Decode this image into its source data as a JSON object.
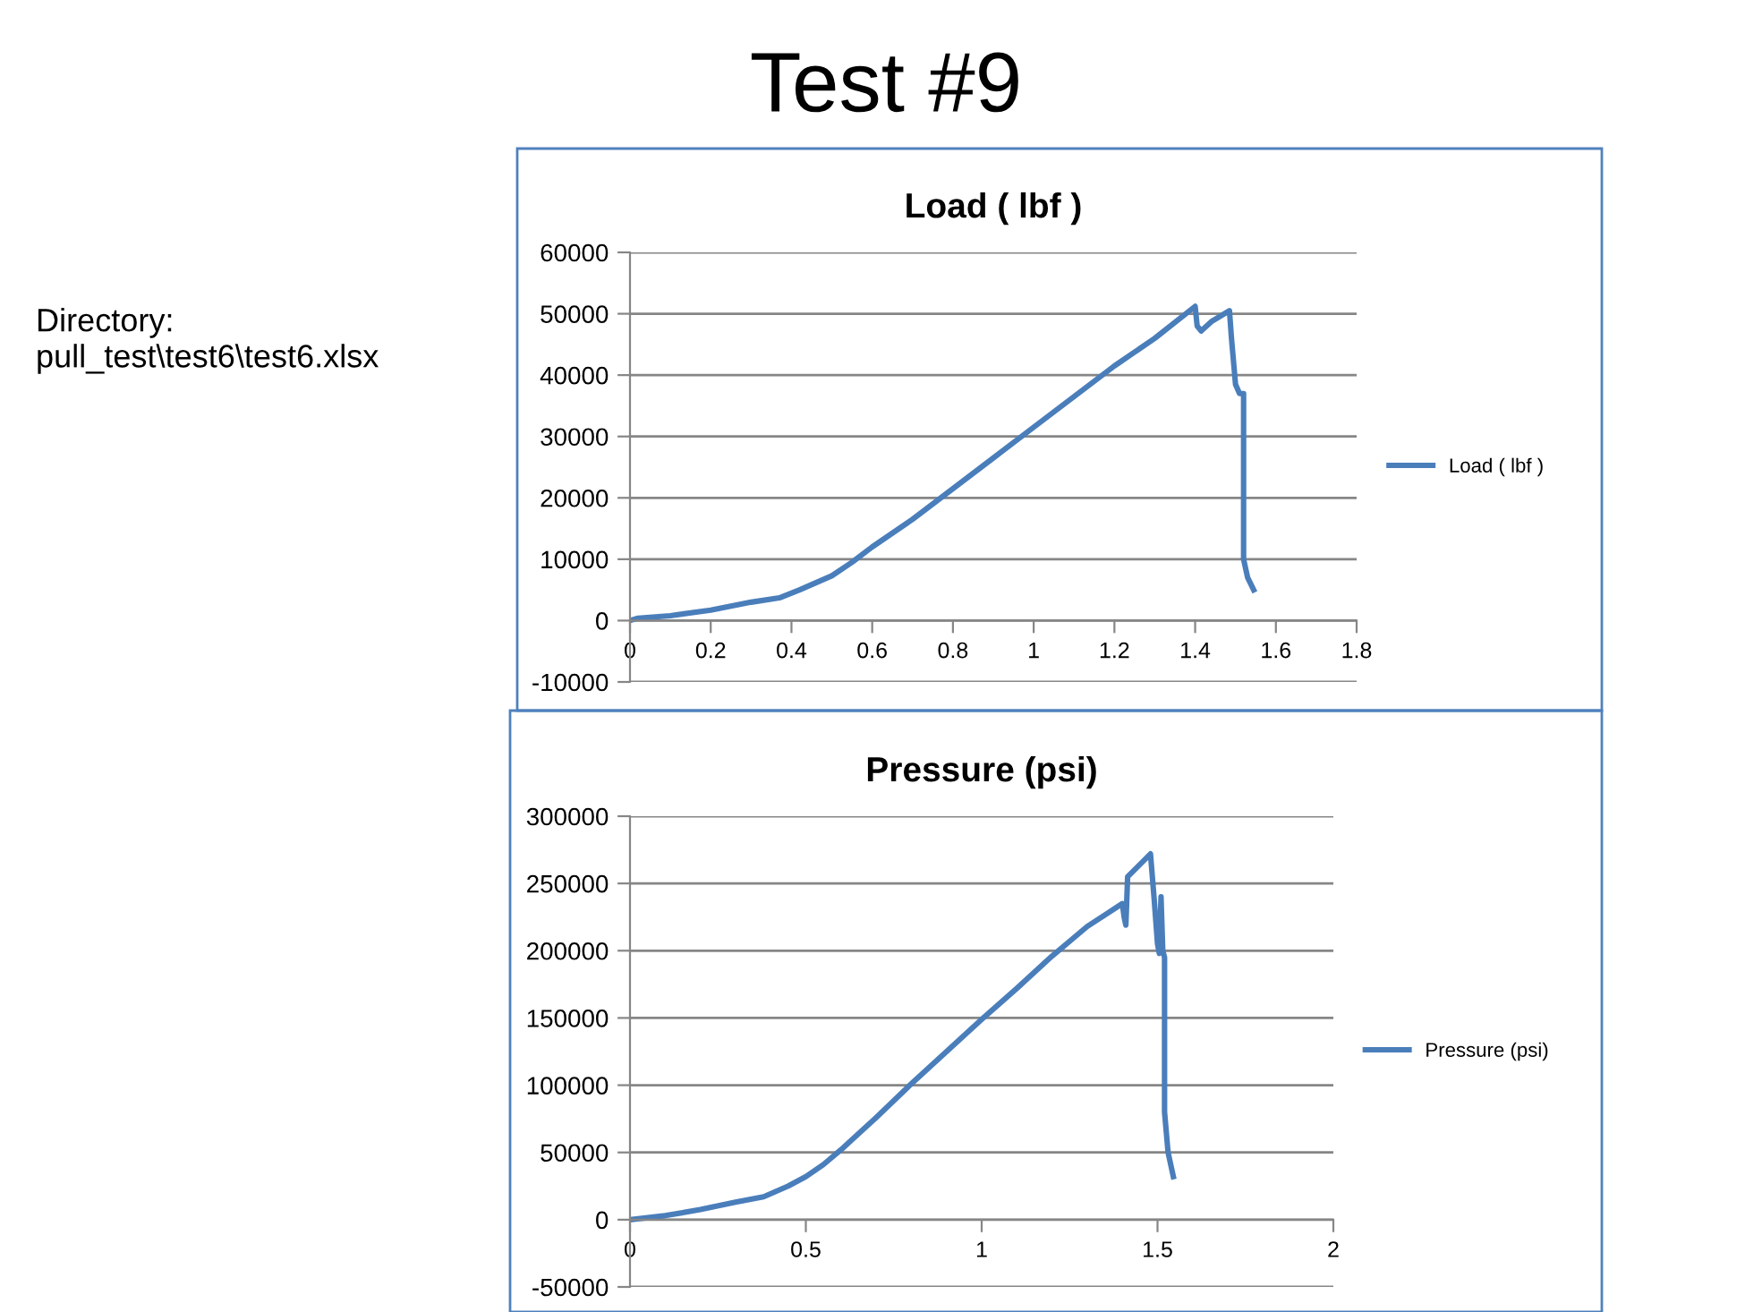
{
  "chart_data": [
    {
      "type": "line",
      "title": "Load ( lbf )",
      "annotations": [
        "Test #9",
        "Directory:\npull_test\\test6\\test6.xlsx"
      ],
      "xlim": [
        0,
        1.8
      ],
      "xticks": [
        0,
        0.2,
        0.4,
        0.6,
        0.8,
        1,
        1.2,
        1.4,
        1.6,
        1.8
      ],
      "ylim": [
        -10000,
        60000
      ],
      "yticks": [
        -10000,
        0,
        10000,
        20000,
        30000,
        40000,
        50000,
        60000
      ],
      "grid": "y",
      "legend": "right",
      "marker": "none",
      "line_style": "solid",
      "series": [
        {
          "name": "Load ( lbf )",
          "color": "#4a7ebb",
          "x": [
            0,
            0.02,
            0.1,
            0.2,
            0.3,
            0.37,
            0.42,
            0.5,
            0.55,
            0.6,
            0.7,
            0.8,
            0.9,
            1.0,
            1.1,
            1.2,
            1.3,
            1.4,
            1.405,
            1.415,
            1.44,
            1.485,
            1.49,
            1.5,
            1.51,
            1.52,
            1.52,
            1.52,
            1.53,
            1.545
          ],
          "values": [
            0,
            400,
            800,
            1700,
            3000,
            3700,
            5000,
            7300,
            9500,
            12000,
            16500,
            21500,
            26500,
            31500,
            36500,
            41500,
            46000,
            51200,
            48000,
            47200,
            48700,
            50500,
            46000,
            38500,
            37000,
            37000,
            30000,
            10000,
            7000,
            5000
          ]
        }
      ]
    },
    {
      "type": "line",
      "title": "Pressure (psi)",
      "xlim": [
        0,
        2
      ],
      "xticks": [
        0,
        0.5,
        1,
        1.5,
        2
      ],
      "ylim": [
        -50000,
        300000
      ],
      "yticks": [
        -50000,
        0,
        50000,
        100000,
        150000,
        200000,
        250000,
        300000
      ],
      "grid": "y",
      "legend": "right",
      "marker": "none",
      "line_style": "solid",
      "series": [
        {
          "name": "Pressure (psi)",
          "color": "#4a7ebb",
          "x": [
            0,
            0.1,
            0.2,
            0.3,
            0.38,
            0.45,
            0.5,
            0.55,
            0.6,
            0.7,
            0.8,
            0.9,
            1.0,
            1.1,
            1.2,
            1.3,
            1.4,
            1.405,
            1.41,
            1.415,
            1.48,
            1.49,
            1.5,
            1.505,
            1.51,
            1.515,
            1.52,
            1.52,
            1.52,
            1.53,
            1.545
          ],
          "values": [
            0,
            3000,
            7500,
            13000,
            17000,
            25000,
            32000,
            41000,
            52000,
            76000,
            101000,
            125000,
            149000,
            172000,
            196000,
            218000,
            235000,
            225000,
            219000,
            255000,
            272000,
            240000,
            205000,
            198000,
            240000,
            200000,
            195000,
            150000,
            80000,
            50000,
            32000
          ]
        }
      ]
    }
  ]
}
